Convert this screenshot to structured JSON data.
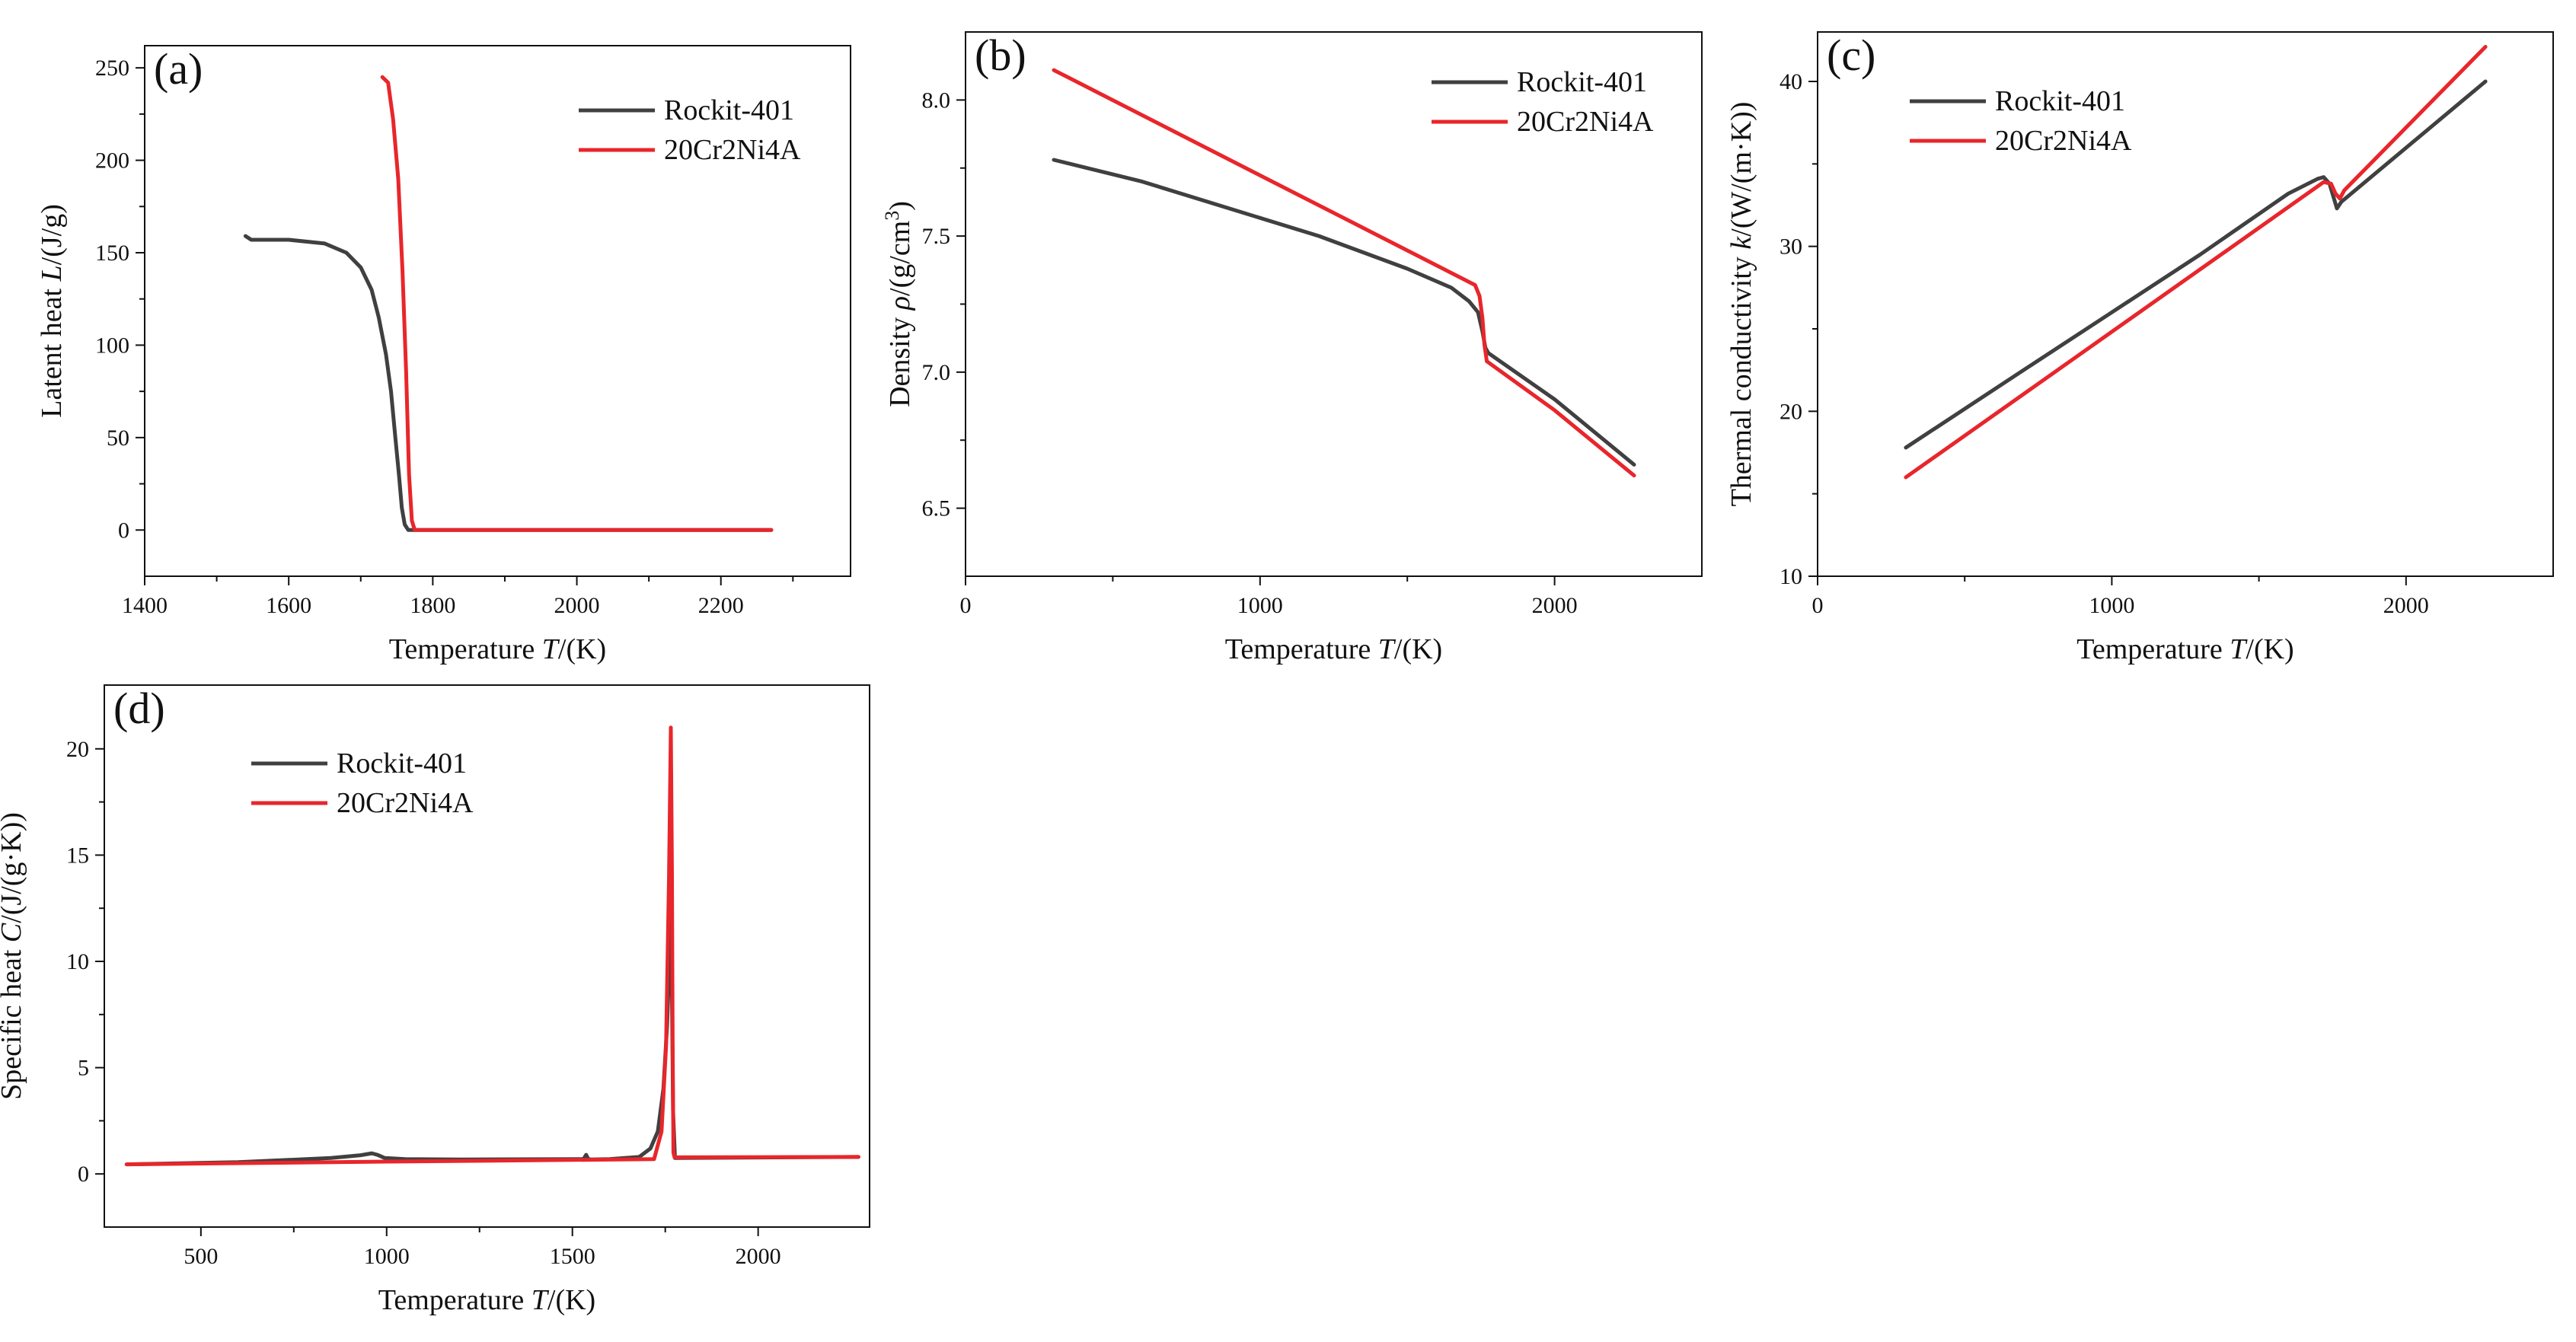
{
  "colors": {
    "rockit": "#404040",
    "cr": "#e8262b"
  },
  "chart_data": [
    {
      "id": "a",
      "type": "line",
      "panel_label": "(a)",
      "xlabel": "Temperature",
      "xsym": "T",
      "xunit": "/(K)",
      "ylabel": "Latent heat",
      "ysym": "L",
      "yunit": "/(J/g)",
      "xlim": [
        1400,
        2380
      ],
      "ylim": [
        -25,
        262
      ],
      "xticks": [
        1400,
        1600,
        1800,
        2000,
        2200
      ],
      "xminor": [
        1500,
        1700,
        1900,
        2100,
        2300
      ],
      "yticks": [
        0,
        50,
        100,
        150,
        200,
        250
      ],
      "yminor": [
        25,
        75,
        125,
        175,
        225
      ],
      "legend": "top-right",
      "series": [
        {
          "name": "Rockit-401",
          "color_key": "rockit",
          "x": [
            1540,
            1548,
            1600,
            1650,
            1680,
            1700,
            1715,
            1725,
            1735,
            1742,
            1748,
            1753,
            1757,
            1761,
            1766,
            2270
          ],
          "y": [
            159,
            157,
            157,
            155,
            150,
            142,
            130,
            115,
            95,
            75,
            50,
            30,
            12,
            3,
            0,
            0
          ]
        },
        {
          "name": "20Cr2Ni4A",
          "color_key": "cr",
          "x": [
            1730,
            1738,
            1745,
            1752,
            1758,
            1763,
            1767,
            1771,
            1775,
            2270
          ],
          "y": [
            245,
            242,
            222,
            190,
            140,
            85,
            30,
            5,
            0,
            0
          ]
        }
      ]
    },
    {
      "id": "b",
      "type": "line",
      "panel_label": "(b)",
      "xlabel": "Temperature",
      "xsym": "T",
      "xunit": "/(K)",
      "ylabel": "Density",
      "ysym": "ρ",
      "yunit": "/(g/cm",
      "xlim": [
        0,
        2500
      ],
      "ylim": [
        6.25,
        8.25
      ],
      "xticks": [
        0,
        1000,
        2000
      ],
      "xminor": [
        500,
        1500
      ],
      "yticks": [
        6.5,
        7.0,
        7.5,
        8.0
      ],
      "yminor": [
        6.75,
        7.25,
        7.75
      ],
      "ytick_labels": [
        "6.5",
        "7.0",
        "7.5",
        "8.0"
      ],
      "legend": "top-right",
      "series": [
        {
          "name": "Rockit-401",
          "color_key": "rockit",
          "x": [
            300,
            600,
            900,
            1200,
            1500,
            1650,
            1710,
            1740,
            1755,
            1765,
            1775,
            2000,
            2270
          ],
          "y": [
            7.78,
            7.7,
            7.6,
            7.5,
            7.38,
            7.31,
            7.26,
            7.22,
            7.15,
            7.09,
            7.07,
            6.9,
            6.66
          ]
        },
        {
          "name": "20Cr2Ni4A",
          "color_key": "cr",
          "x": [
            300,
            1730,
            1745,
            1755,
            1762,
            1770,
            2000,
            2270
          ],
          "y": [
            8.11,
            7.32,
            7.28,
            7.2,
            7.1,
            7.04,
            6.86,
            6.62
          ]
        }
      ]
    },
    {
      "id": "c",
      "type": "line",
      "panel_label": "(c)",
      "xlabel": "Temperature",
      "xsym": "T",
      "xunit": "/(K)",
      "ylabel": "Thermal conductivity",
      "ysym": "k",
      "yunit": "/(W/(m·K))",
      "xlim": [
        0,
        2500
      ],
      "ylim": [
        10,
        43
      ],
      "xticks": [
        0,
        1000,
        2000
      ],
      "xminor": [
        500,
        1500
      ],
      "yticks": [
        10,
        20,
        30,
        40
      ],
      "yminor": [
        15,
        25,
        35
      ],
      "legend": "top-left",
      "series": [
        {
          "name": "Rockit-401",
          "color_key": "rockit",
          "x": [
            300,
            700,
            1000,
            1300,
            1600,
            1700,
            1720,
            1740,
            1755,
            1765,
            1780,
            2270
          ],
          "y": [
            17.8,
            22.5,
            26.0,
            29.5,
            33.2,
            34.1,
            34.2,
            33.8,
            32.9,
            32.3,
            32.7,
            40.0
          ]
        },
        {
          "name": "20Cr2Ni4A",
          "color_key": "cr",
          "x": [
            300,
            1720,
            1745,
            1760,
            1775,
            1790,
            2270
          ],
          "y": [
            16.0,
            33.9,
            33.8,
            33.2,
            32.9,
            33.4,
            42.1
          ]
        }
      ]
    },
    {
      "id": "d",
      "type": "line",
      "panel_label": "(d)",
      "xlabel": "Temperature",
      "xsym": "T",
      "xunit": "/(K)",
      "ylabel": "Specific heat",
      "ysym": "C",
      "yunit": "/(J/(g·K))",
      "xlim": [
        240,
        2300
      ],
      "ylim": [
        -2.5,
        23
      ],
      "xticks": [
        500,
        1000,
        1500,
        2000
      ],
      "xminor": [
        750,
        1250,
        1750
      ],
      "yticks": [
        0,
        5,
        10,
        15,
        20
      ],
      "yminor": [
        2.5,
        7.5,
        12.5,
        17.5
      ],
      "legend": "top-left",
      "series": [
        {
          "name": "Rockit-401",
          "color_key": "rockit",
          "x": [
            300,
            600,
            850,
            930,
            960,
            975,
            995,
            1050,
            1200,
            1530,
            1537,
            1542,
            1548,
            1600,
            1680,
            1710,
            1730,
            1745,
            1755,
            1762,
            1766,
            1771,
            1776,
            2270
          ],
          "y": [
            0.45,
            0.55,
            0.75,
            0.88,
            0.97,
            0.9,
            0.75,
            0.7,
            0.68,
            0.7,
            0.9,
            0.72,
            0.68,
            0.7,
            0.8,
            1.2,
            2.0,
            4.0,
            7.0,
            10.5,
            12.3,
            3.0,
            0.75,
            0.8
          ]
        },
        {
          "name": "20Cr2Ni4A",
          "color_key": "cr",
          "x": [
            300,
            1000,
            1500,
            1720,
            1740,
            1752,
            1760,
            1765,
            1768,
            1770,
            1772,
            1775,
            1780,
            2270
          ],
          "y": [
            0.45,
            0.58,
            0.66,
            0.7,
            2.0,
            6.0,
            14.0,
            21.0,
            14.0,
            6.0,
            1.0,
            0.78,
            0.78,
            0.8
          ]
        }
      ]
    }
  ]
}
